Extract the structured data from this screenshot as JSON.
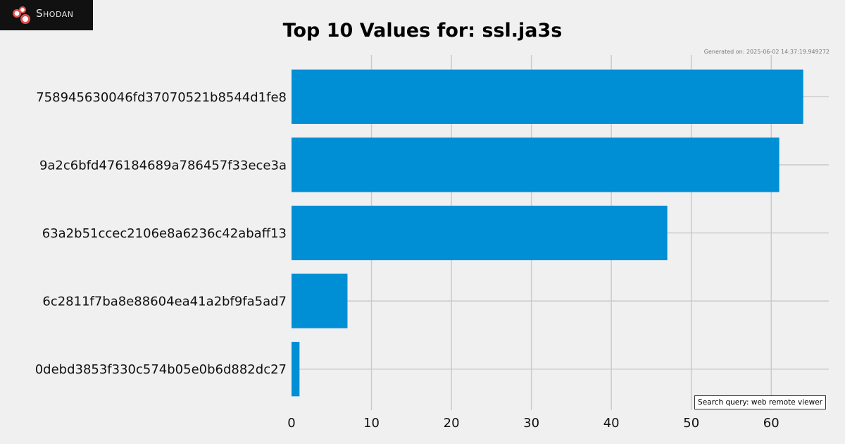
{
  "logo": {
    "text": "Shodan",
    "accent_color": "#e05050",
    "bg_color": "#111111"
  },
  "generated_text": "Generated on: 2025-06-02 14:37:19.949272",
  "search_query_text": "Search query: web remote viewer",
  "chart_data": {
    "type": "bar",
    "orientation": "horizontal",
    "title": "Top 10 Values for: ssl.ja3s",
    "categories": [
      "758945630046fd37070521b8544d1fe8",
      "9a2c6bfd476184689a786457f33ece3a",
      "63a2b51ccec2106e8a6236c42abaff13",
      "6c2811f7ba8e88604ea41a2bf9fa5ad7",
      "0debd3853f330c574b05e0b6d882dc27"
    ],
    "values": [
      64,
      61,
      47,
      7,
      1
    ],
    "xlabel": "",
    "ylabel": "",
    "xlim": [
      0,
      67.2
    ],
    "xticks": [
      0,
      10,
      20,
      30,
      40,
      50,
      60
    ],
    "grid": true,
    "bar_color": "#008fd5",
    "background_color": "#f0f0f0",
    "grid_color": "#cbcbcb"
  }
}
